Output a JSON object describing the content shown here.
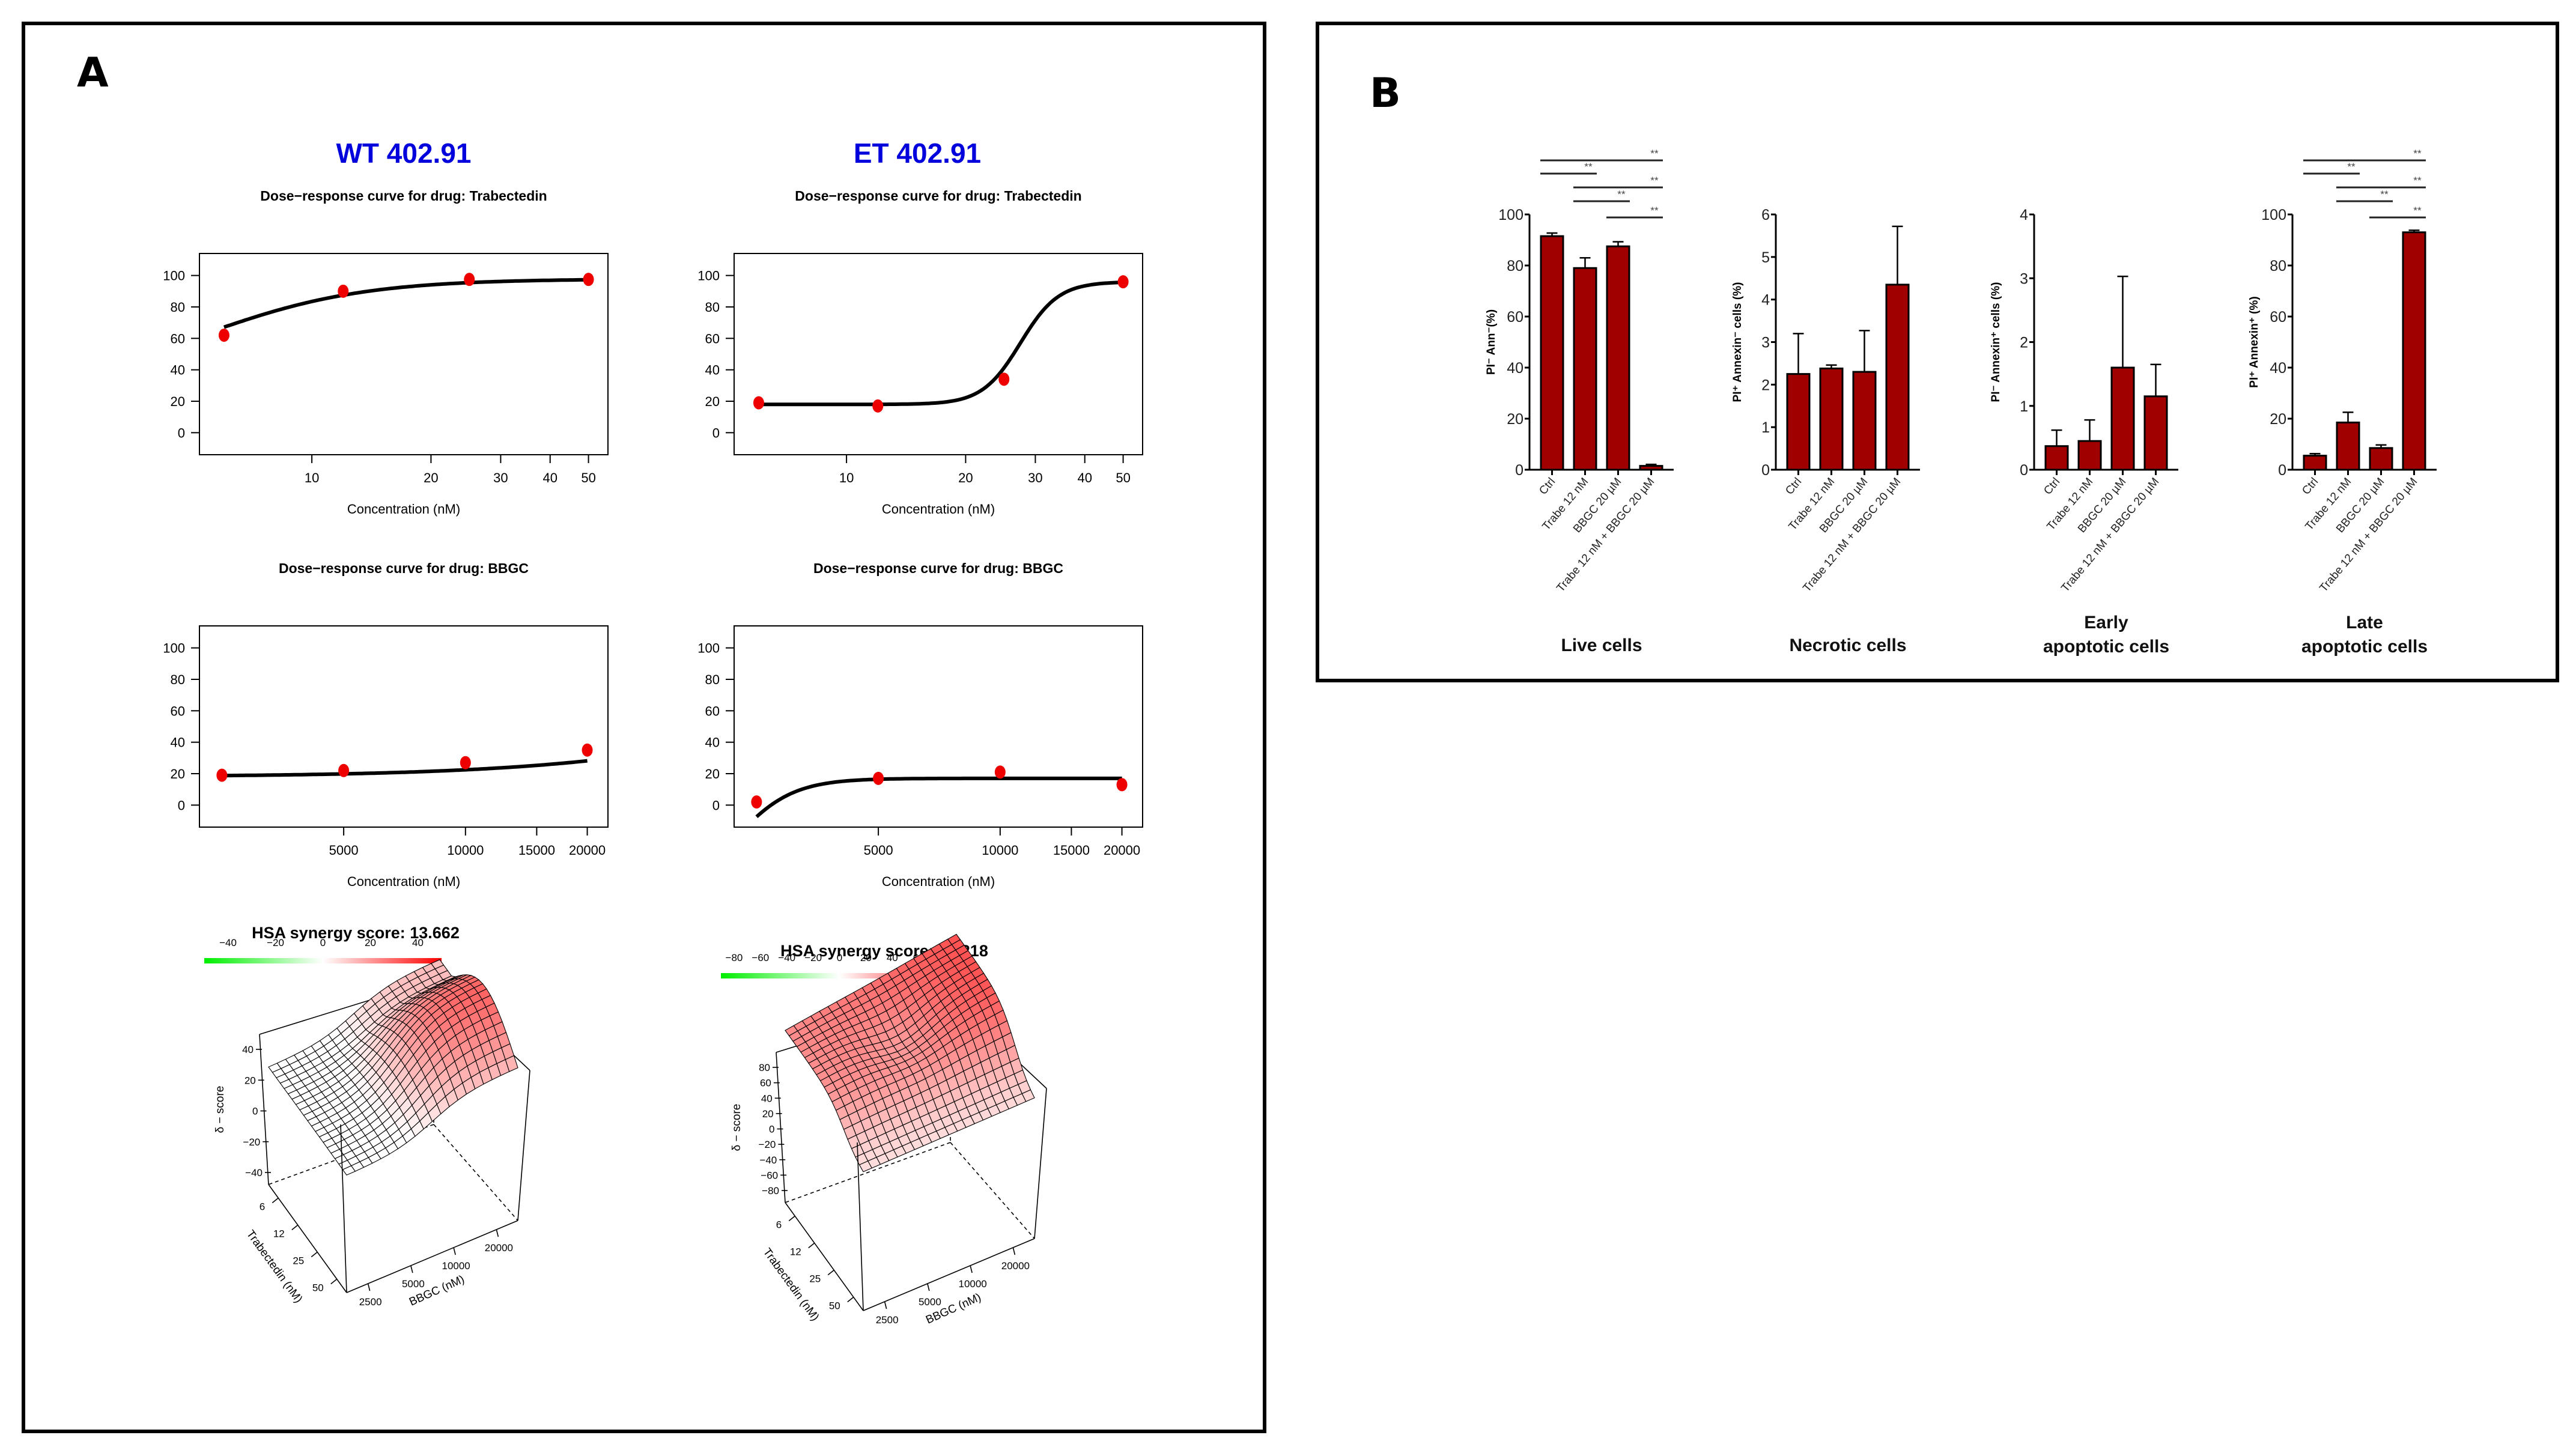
{
  "panels": {
    "A": {
      "letter": "A"
    },
    "B": {
      "letter": "B"
    }
  },
  "colors": {
    "title_blue": "#0000dd",
    "point_red": "#ee0000",
    "bar_red": "#a00000",
    "synergy_green": "#00ee00",
    "synergy_red": "#ff0000"
  },
  "chart_data": [
    {
      "id": "wt_trabectedin",
      "type": "line",
      "group_title": "WT 402.91",
      "title": "Dose−response curve for drug: Trabectedin",
      "xlabel": "Concentration (nM)",
      "ylabel": "",
      "xscale": "log",
      "xlim": [
        5.2,
        56
      ],
      "ylim": [
        -14,
        114
      ],
      "xticks": [
        10,
        20,
        30,
        40,
        50
      ],
      "xtick_labels": [
        "10",
        "20",
        "30",
        "40",
        "50"
      ],
      "yticks": [
        0,
        20,
        40,
        60,
        80,
        100
      ],
      "ytick_labels": [
        "0",
        "20",
        "40",
        "60",
        "80",
        "100"
      ],
      "points": {
        "x": [
          6,
          12,
          25,
          50
        ],
        "y": [
          62,
          90,
          97.5,
          97.5
        ]
      },
      "curve": {
        "model": "logistic",
        "bottom": 30,
        "top": 97.8,
        "ec50": 5.5,
        "hill": 2.2
      }
    },
    {
      "id": "et_trabectedin",
      "type": "line",
      "group_title": "ET 402.91",
      "title": "Dose−response curve for drug: Trabectedin",
      "xlabel": "Concentration (nM)",
      "ylabel": "",
      "xscale": "log",
      "xlim": [
        5.2,
        56
      ],
      "ylim": [
        -14,
        114
      ],
      "xticks": [
        10,
        20,
        30,
        40,
        50
      ],
      "xtick_labels": [
        "10",
        "20",
        "30",
        "40",
        "50"
      ],
      "yticks": [
        0,
        20,
        40,
        60,
        80,
        100
      ],
      "ytick_labels": [
        "0",
        "20",
        "40",
        "60",
        "80",
        "100"
      ],
      "points": {
        "x": [
          6,
          12,
          25,
          50
        ],
        "y": [
          19,
          17,
          34,
          96
        ]
      },
      "curve": {
        "model": "logistic",
        "bottom": 18,
        "top": 96,
        "ec50": 27.5,
        "hill": 9
      }
    },
    {
      "id": "wt_bbgc",
      "type": "line",
      "title": "Dose−response curve for drug: BBGC",
      "xlabel": "Concentration (nM)",
      "ylabel": "",
      "xscale": "log",
      "xlim": [
        2200,
        22500
      ],
      "ylim": [
        -14,
        114
      ],
      "xticks": [
        5000,
        10000,
        15000,
        20000
      ],
      "xtick_labels": [
        "5000",
        "10000",
        "15000",
        "20000"
      ],
      "yticks": [
        0,
        20,
        40,
        60,
        80,
        100
      ],
      "ytick_labels": [
        "0",
        "20",
        "40",
        "60",
        "80",
        "100"
      ],
      "points": {
        "x": [
          2500,
          5000,
          10000,
          20000
        ],
        "y": [
          19,
          22,
          27,
          35
        ]
      },
      "curve": {
        "model": "logistic",
        "bottom": 18,
        "top": 100,
        "ec50": 90000,
        "hill": 1.3
      }
    },
    {
      "id": "et_bbgc",
      "type": "line",
      "title": "Dose−response curve for drug: BBGC",
      "xlabel": "Concentration (nM)",
      "ylabel": "",
      "xscale": "log",
      "xlim": [
        2200,
        22500
      ],
      "ylim": [
        -14,
        114
      ],
      "xticks": [
        5000,
        10000,
        15000,
        20000
      ],
      "xtick_labels": [
        "5000",
        "10000",
        "15000",
        "20000"
      ],
      "yticks": [
        0,
        20,
        40,
        60,
        80,
        100
      ],
      "ytick_labels": [
        "0",
        "20",
        "40",
        "60",
        "80",
        "100"
      ],
      "points": {
        "x": [
          2500,
          5000,
          10000,
          20000
        ],
        "y": [
          2,
          17,
          21,
          13
        ]
      },
      "curve": {
        "model": "logistic",
        "bottom": -60,
        "top": 17,
        "ec50": 2200,
        "hill": 6
      }
    },
    {
      "id": "wt_synergy",
      "type": "surface3d",
      "title": "HSA synergy score: 13.662",
      "colorbar_ticks": [
        "−40",
        "−20",
        "0",
        "20",
        "40"
      ],
      "colorbar_range": [
        -50,
        50
      ],
      "zlabel": "δ − score",
      "zticks": [
        "40",
        "20",
        "0",
        "−20",
        "−40"
      ],
      "xlabel": "BBGC (nM)",
      "xticks": [
        "2500",
        "5000",
        "10000",
        "20000"
      ],
      "ylabel": "Trabectedin (nM)",
      "yticks": [
        "6",
        "12",
        "25",
        "50"
      ],
      "peak_region": "high BBGC, low-mid Trabectedin",
      "max_value_approx": 35
    },
    {
      "id": "et_synergy",
      "type": "surface3d",
      "title": "HSA synergy score: 37.218",
      "colorbar_ticks": [
        "−80",
        "−60",
        "−40",
        "−20",
        "0",
        "20",
        "40",
        "60",
        "80"
      ],
      "colorbar_range": [
        -90,
        90
      ],
      "zlabel": "δ − score",
      "zticks": [
        "80",
        "60",
        "40",
        "20",
        "0",
        "−20",
        "−40",
        "−60",
        "−80"
      ],
      "xlabel": "BBGC (nM)",
      "xticks": [
        "2500",
        "5000",
        "10000",
        "20000"
      ],
      "ylabel": "Trabectedin (nM)",
      "yticks": [
        "6",
        "12",
        "25",
        "50"
      ],
      "peak_region": "high BBGC, high Trabectedin",
      "max_value_approx": 80
    },
    {
      "id": "live_cells",
      "type": "bar",
      "title": "Live cells",
      "ylabel": "PI⁻ Ann⁻(%)",
      "ylim": [
        0,
        100
      ],
      "yticks": [
        "0",
        "20",
        "40",
        "60",
        "80",
        "100"
      ],
      "categories": [
        "Ctrl",
        "Trabe 12 nM",
        "BBGC 20 µM",
        "Trabe 12 nM + BBGC 20 µM"
      ],
      "values": [
        91.5,
        79,
        87.5,
        1.5
      ],
      "errors": [
        1.2,
        4,
        1.8,
        0.6
      ],
      "significance": [
        {
          "from": 0,
          "to": 3,
          "label": "**"
        },
        {
          "from": 0,
          "to": 1,
          "label": "**"
        },
        {
          "from": 1,
          "to": 3,
          "label": "**"
        },
        {
          "from": 1,
          "to": 2,
          "label": "**"
        },
        {
          "from": 2,
          "to": 3,
          "label": "**"
        }
      ]
    },
    {
      "id": "necrotic_cells",
      "type": "bar",
      "title": "Necrotic cells",
      "ylabel": "PI⁺ Annexin⁻ cells (%)",
      "ylim": [
        0,
        6
      ],
      "yticks": [
        "0",
        "1",
        "2",
        "3",
        "4",
        "5",
        "6"
      ],
      "categories": [
        "Ctrl",
        "Trabe 12 nM",
        "BBGC 20 µM",
        "Trabe 12 nM + BBGC 20 µM"
      ],
      "values": [
        2.25,
        2.38,
        2.3,
        4.35
      ],
      "errors": [
        0.95,
        0.08,
        0.97,
        1.37
      ],
      "significance": []
    },
    {
      "id": "early_apoptotic_cells",
      "type": "bar",
      "title": "Early\napoptotic cells",
      "title_lines": [
        "Early",
        "apoptotic cells"
      ],
      "ylabel": "PI⁻ Annexin⁺ cells (%)",
      "ylim": [
        0,
        4
      ],
      "yticks": [
        "0",
        "1",
        "2",
        "3",
        "4"
      ],
      "categories": [
        "Ctrl",
        "Trabe 12 nM",
        "BBGC 20 µM",
        "Trabe 12 nM + BBGC 20 µM"
      ],
      "values": [
        0.37,
        0.45,
        1.6,
        1.15
      ],
      "errors": [
        0.25,
        0.33,
        1.43,
        0.5
      ],
      "significance": []
    },
    {
      "id": "late_apoptotic_cells",
      "type": "bar",
      "title": "Late\napoptotic cells",
      "title_lines": [
        "Late",
        "apoptotic cells"
      ],
      "ylabel": "PI⁺ Annexin⁺ (%)",
      "ylim": [
        0,
        100
      ],
      "yticks": [
        "0",
        "20",
        "40",
        "60",
        "80",
        "100"
      ],
      "categories": [
        "Ctrl",
        "Trabe 12 nM",
        "BBGC 20 µM",
        "Trabe 12 nM + BBGC 20 µM"
      ],
      "values": [
        5.5,
        18.5,
        8.5,
        93
      ],
      "errors": [
        0.8,
        4,
        1.2,
        0.8
      ],
      "significance": [
        {
          "from": 0,
          "to": 3,
          "label": "**"
        },
        {
          "from": 0,
          "to": 1,
          "label": "**"
        },
        {
          "from": 1,
          "to": 3,
          "label": "**"
        },
        {
          "from": 1,
          "to": 2,
          "label": "**"
        },
        {
          "from": 2,
          "to": 3,
          "label": "**"
        }
      ]
    }
  ]
}
